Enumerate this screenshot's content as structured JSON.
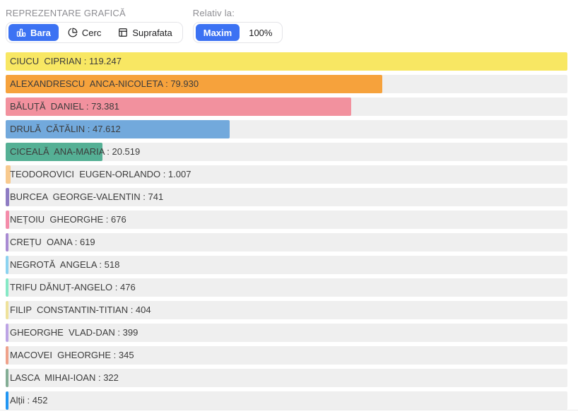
{
  "header": {
    "title": "REPREZENTARE GRAFICĂ",
    "relative_label": "Relativ la:",
    "accent_color": "#3c72f3",
    "chart_type_options": [
      {
        "label": "Bara",
        "icon": "bar-chart-icon",
        "selected": true
      },
      {
        "label": "Cerc",
        "icon": "pie-chart-icon",
        "selected": false
      },
      {
        "label": "Suprafata",
        "icon": "grid-icon",
        "selected": false
      }
    ],
    "relative_options": [
      {
        "label": "Maxim",
        "selected": true
      },
      {
        "label": "100%",
        "selected": false
      }
    ]
  },
  "chart_data": {
    "type": "bar",
    "orientation": "horizontal",
    "relative_to": "Maxim",
    "max_value": 119247,
    "row_background": "#efefef",
    "label_color": "#3c3c3c",
    "bars": [
      {
        "name": "CIUCU  CIPRIAN",
        "value": 119247,
        "display": "CIUCU  CIPRIAN : 119.247",
        "color": "#f8e763"
      },
      {
        "name": "ALEXANDRESCU  ANCA-NICOLETA",
        "value": 79930,
        "display": "ALEXANDRESCU  ANCA-NICOLETA : 79.930",
        "color": "#f6a23c"
      },
      {
        "name": "BĂLUȚĂ  DANIEL",
        "value": 73381,
        "display": "BĂLUȚĂ  DANIEL : 73.381",
        "color": "#f2919e"
      },
      {
        "name": "DRULĂ  CĂTĂLIN",
        "value": 47612,
        "display": "DRULĂ  CĂTĂLIN : 47.612",
        "color": "#72a9dc"
      },
      {
        "name": "CICEALĂ  ANA-MARIA",
        "value": 20519,
        "display": "CICEALĂ  ANA-MARIA : 20.519",
        "color": "#55b095"
      },
      {
        "name": "TEODOROVICI  EUGEN-ORLANDO",
        "value": 1007,
        "display": "TEODOROVICI  EUGEN-ORLANDO : 1.007",
        "color": "#f8ca8e"
      },
      {
        "name": "BURCEA  GEORGE-VALENTIN",
        "value": 741,
        "display": "BURCEA  GEORGE-VALENTIN : 741",
        "color": "#8e7cc3"
      },
      {
        "name": "NEȚOIU  GHEORGHE",
        "value": 676,
        "display": "NEȚOIU  GHEORGHE : 676",
        "color": "#f48caa"
      },
      {
        "name": "CREȚU  OANA",
        "value": 619,
        "display": "CREȚU  OANA : 619",
        "color": "#a98bd3"
      },
      {
        "name": "NEGROTĂ  ANGELA",
        "value": 518,
        "display": "NEGROTĂ  ANGELA : 518",
        "color": "#8cd3f0"
      },
      {
        "name": "TRIFU DĂNUȚ-ANGELO",
        "value": 476,
        "display": "TRIFU DĂNUȚ-ANGELO : 476",
        "color": "#86e9c6"
      },
      {
        "name": "FILIP  CONSTANTIN-TITIAN",
        "value": 404,
        "display": "FILIP  CONSTANTIN-TITIAN : 404",
        "color": "#efe29b"
      },
      {
        "name": "GHEORGHE  VLAD-DAN",
        "value": 399,
        "display": "GHEORGHE  VLAD-DAN : 399",
        "color": "#bda4e5"
      },
      {
        "name": "MACOVEI  GHEORGHE",
        "value": 345,
        "display": "MACOVEI  GHEORGHE : 345",
        "color": "#efa28b"
      },
      {
        "name": "LASCA  MIHAI-IOAN",
        "value": 322,
        "display": "LASCA  MIHAI-IOAN : 322",
        "color": "#84ae96"
      },
      {
        "name": "Alții",
        "value": 452,
        "display": "Alții : 452",
        "color": "#2196f3"
      }
    ]
  }
}
